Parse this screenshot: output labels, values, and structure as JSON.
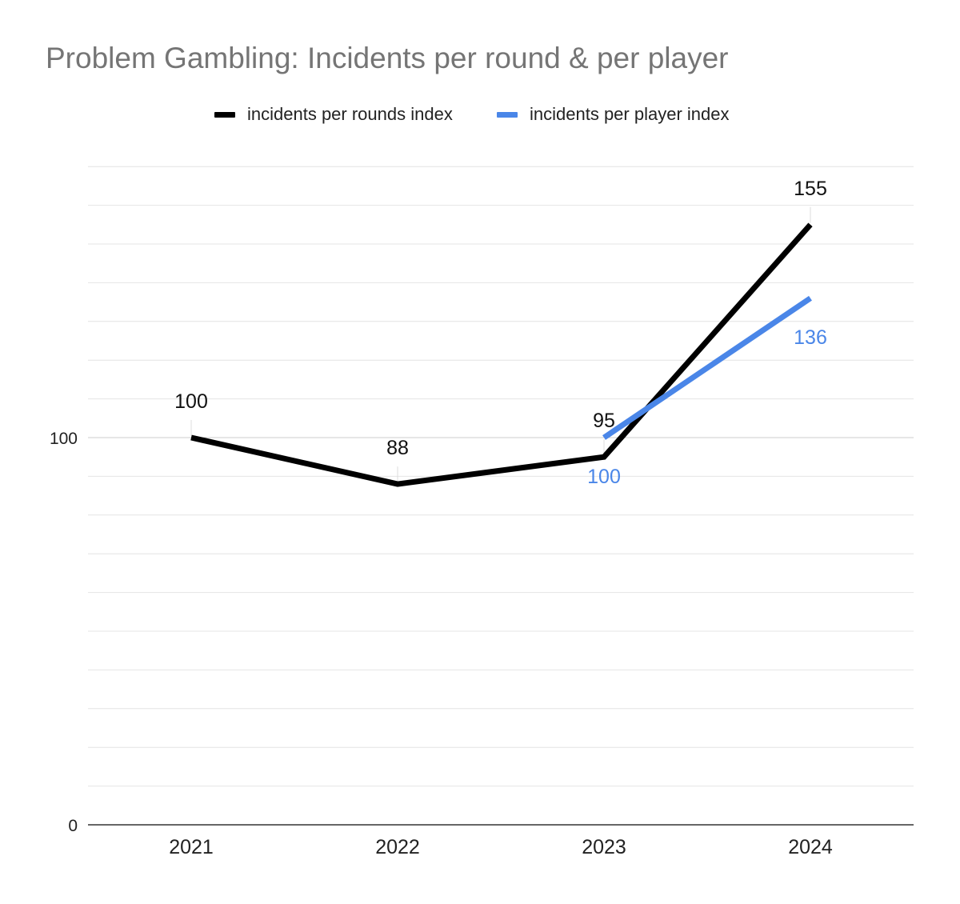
{
  "chart_data": {
    "type": "line",
    "title": "Problem Gambling: Incidents per round & per player",
    "categories": [
      "2021",
      "2022",
      "2023",
      "2024"
    ],
    "ylim": [
      0,
      170
    ],
    "y_ticks": [
      {
        "value": 0,
        "label": "0"
      },
      {
        "value": 100,
        "label": "100"
      }
    ],
    "grid": true,
    "legend_position": "top",
    "series": [
      {
        "name": "incidents per rounds index",
        "color": "#000000",
        "values": [
          100,
          88,
          95,
          155
        ],
        "labels": [
          "100",
          "88",
          "95",
          "155"
        ],
        "label_position": "above"
      },
      {
        "name": "incidents per player index",
        "color": "#4a86e8",
        "values": [
          null,
          null,
          100,
          136
        ],
        "labels": [
          "",
          "",
          "100",
          "136"
        ],
        "label_position": "below"
      }
    ]
  }
}
